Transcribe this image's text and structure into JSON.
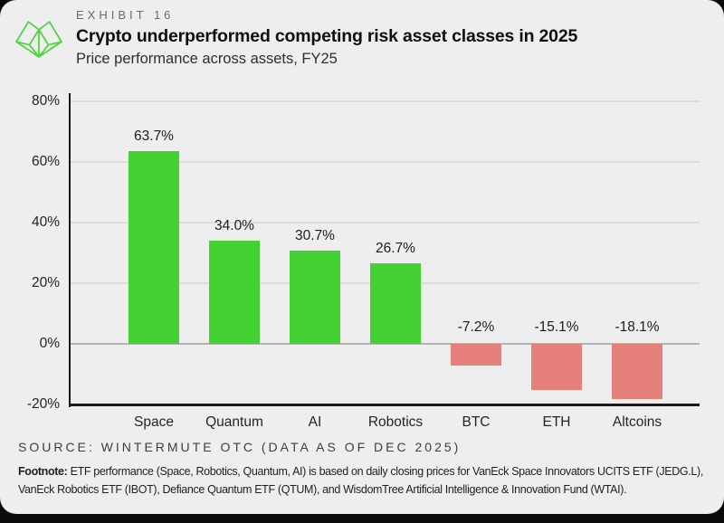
{
  "page": {
    "background_color": "#0b0b0b",
    "card_color": "#eeeeee"
  },
  "header": {
    "logo_icon": "wintermute-logo",
    "logo_color": "#4cd43c",
    "exhibit_label": "EXHIBIT 16",
    "title": "Crypto underperformed competing risk asset classes in 2025",
    "subtitle": "Price performance across assets, FY25"
  },
  "chart_data": {
    "type": "bar",
    "title": "Price performance across assets, FY25",
    "categories": [
      "Space",
      "Quantum",
      "AI",
      "Robotics",
      "BTC",
      "ETH",
      "Altcoins"
    ],
    "values": [
      63.7,
      34.0,
      30.7,
      26.7,
      -7.2,
      -15.1,
      -18.1
    ],
    "value_labels": [
      "63.7%",
      "34.0%",
      "30.7%",
      "26.7%",
      "-7.2%",
      "-15.1%",
      "-18.1%"
    ],
    "xlabel": "",
    "ylabel": "",
    "yticks": [
      80,
      60,
      40,
      20,
      0,
      -20
    ],
    "ytick_labels": [
      "80%",
      "60%",
      "40%",
      "20%",
      "0%",
      "-20%"
    ],
    "ylim": [
      -20,
      82.5
    ],
    "grid": true,
    "legend": "none",
    "positive_color": "#44d133",
    "negative_color": "#e5807a"
  },
  "footer": {
    "source": "SOURCE: WINTERMUTE OTC (DATA AS OF DEC 2025)",
    "footnote_label": "Footnote:",
    "footnote_text": " ETF performance (Space, Robotics, Quantum, AI) is based on daily closing prices for VanEck Space Innovators UCITS ETF (JEDG.L), VanEck Robotics ETF (IBOT), Defiance Quantum ETF (QTUM), and WisdomTree Artificial Intelligence & Innovation Fund (WTAI)."
  }
}
